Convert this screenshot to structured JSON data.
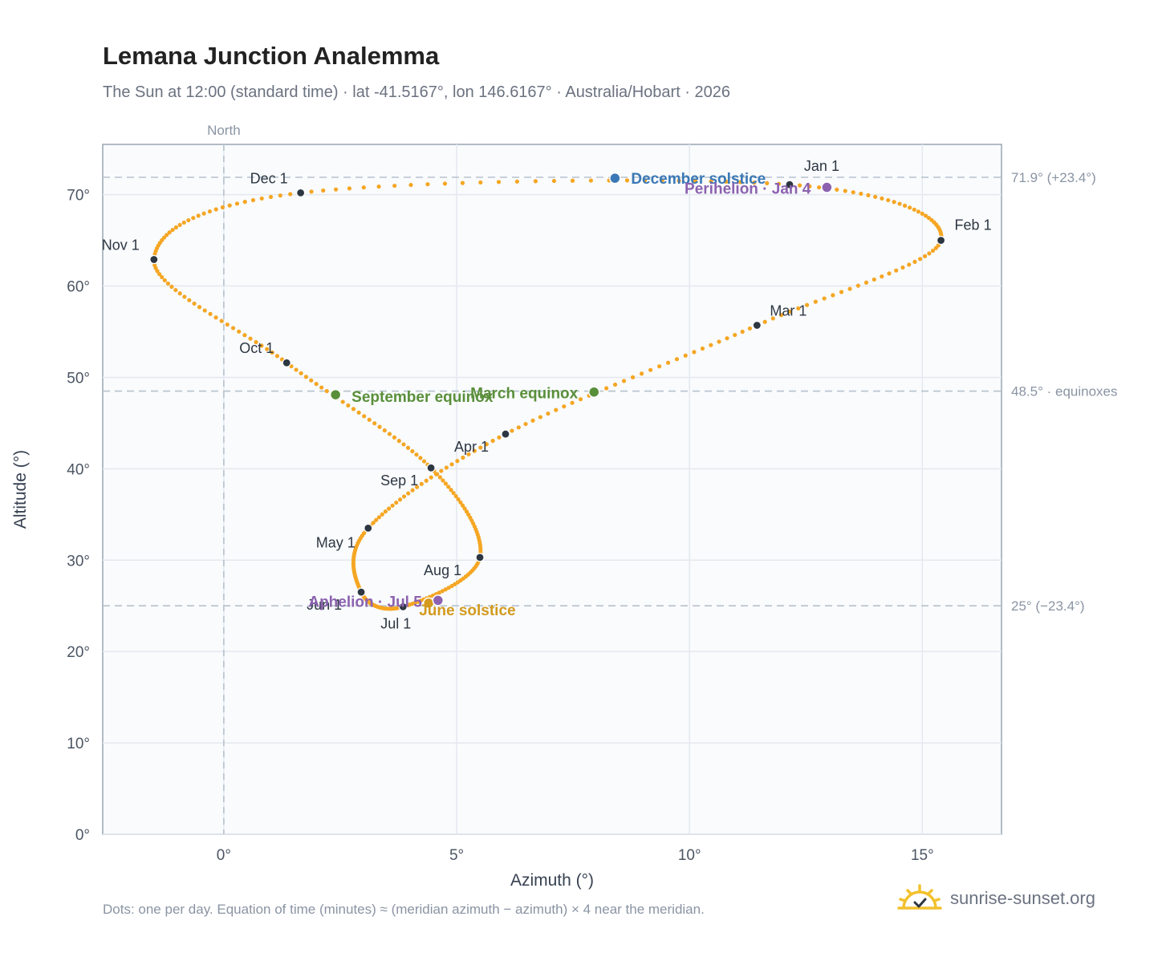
{
  "title": "Lemana Junction Analemma",
  "subtitle": "The Sun at 12:00 (standard time) · lat -41.5167°, lon 146.6167° · Australia/Hobart · 2026",
  "footnote": "Dots: one per day. Equation of time (minutes) ≈ (meridian azimuth − azimuth) × 4 near the meridian.",
  "brand": "sunrise-sunset.org",
  "colors": {
    "curve": "#f5a623",
    "month_dot": "#2d3742",
    "equinox": "#5a8f3a",
    "dec_solstice": "#3a78b5",
    "jun_solstice": "#d39a1e",
    "apsis": "#8c62b0",
    "grid": "#e4e9ef",
    "reference_line": "#b7c2cc"
  },
  "chart_data": {
    "type": "scatter",
    "xlabel": "Azimuth (°)",
    "ylabel": "Altitude (°)",
    "xlim": [
      -2.6,
      16.7
    ],
    "ylim": [
      0,
      75.5
    ],
    "x_ticks": [
      0,
      5,
      10,
      15
    ],
    "x_tick_labels": [
      "0°",
      "5°",
      "10°",
      "15°"
    ],
    "y_ticks": [
      0,
      10,
      20,
      30,
      40,
      50,
      60,
      70
    ],
    "y_tick_labels": [
      "0°",
      "10°",
      "20°",
      "30°",
      "40°",
      "50°",
      "60°",
      "70°"
    ],
    "grid": true,
    "north_line": {
      "x": 0,
      "label": "North"
    },
    "reference_lines": [
      {
        "y": 71.9,
        "label": "71.9° (+23.4°)"
      },
      {
        "y": 48.5,
        "label": "48.5° · equinoxes"
      },
      {
        "y": 25.0,
        "label": "25° (−23.4°)"
      }
    ],
    "month_points": [
      {
        "label": "Jan 1",
        "x": 12.15,
        "y": 71.1
      },
      {
        "label": "Feb 1",
        "x": 15.4,
        "y": 65.0
      },
      {
        "label": "Mar 1",
        "x": 11.45,
        "y": 55.7
      },
      {
        "label": "Apr 1",
        "x": 6.05,
        "y": 43.8
      },
      {
        "label": "May 1",
        "x": 3.1,
        "y": 33.5
      },
      {
        "label": "Jun 1",
        "x": 2.95,
        "y": 26.5
      },
      {
        "label": "Jul 1",
        "x": 3.85,
        "y": 24.9
      },
      {
        "label": "Aug 1",
        "x": 5.5,
        "y": 30.3
      },
      {
        "label": "Sep 1",
        "x": 4.45,
        "y": 40.1
      },
      {
        "label": "Oct 1",
        "x": 1.35,
        "y": 51.6
      },
      {
        "label": "Nov 1",
        "x": -1.5,
        "y": 62.9
      },
      {
        "label": "Dec 1",
        "x": 1.65,
        "y": 70.2
      }
    ],
    "events": [
      {
        "label": "December solstice",
        "x": 8.4,
        "y": 71.8,
        "kind": "dec_solstice"
      },
      {
        "label": "Perihelion · Jan 4",
        "x": 12.95,
        "y": 70.8,
        "kind": "apsis"
      },
      {
        "label": "March equinox",
        "x": 7.95,
        "y": 48.4,
        "kind": "equinox"
      },
      {
        "label": "September equinox",
        "x": 2.4,
        "y": 48.1,
        "kind": "equinox"
      },
      {
        "label": "June solstice",
        "x": 4.4,
        "y": 25.3,
        "kind": "jun_solstice"
      },
      {
        "label": "Aphelion · Jul 5",
        "x": 4.6,
        "y": 25.6,
        "kind": "apsis"
      }
    ]
  }
}
